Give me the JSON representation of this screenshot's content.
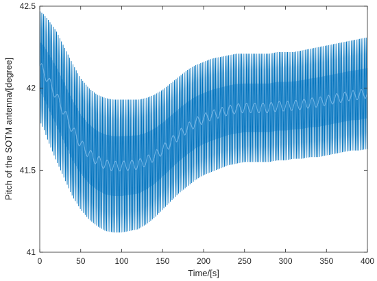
{
  "chart_data": {
    "type": "line",
    "title": "",
    "xlabel": "Time/[s]",
    "ylabel": "Pitch of the SOTM antenna/[degree]",
    "xlim": [
      0,
      400
    ],
    "ylim": [
      41,
      42.5
    ],
    "xticks": [
      0,
      50,
      100,
      150,
      200,
      250,
      300,
      350,
      400
    ],
    "yticks": [
      41,
      41.5,
      42,
      42.5
    ],
    "xtick_labels": [
      "0",
      "50",
      "100",
      "150",
      "200",
      "250",
      "300",
      "350",
      "400"
    ],
    "ytick_labels": [
      "41",
      "41.5",
      "42",
      "42.5"
    ],
    "grid": false,
    "box": true,
    "series": [
      {
        "color": "#0072BD",
        "oscillation_period_s": 2,
        "envelope": {
          "t": [
            0,
            5,
            10,
            20,
            30,
            40,
            50,
            60,
            70,
            80,
            90,
            100,
            110,
            120,
            130,
            140,
            150,
            160,
            170,
            180,
            190,
            200,
            210,
            220,
            230,
            240,
            250,
            260,
            270,
            280,
            290,
            300,
            310,
            320,
            330,
            340,
            350,
            360,
            370,
            380,
            390,
            400
          ],
          "upper": [
            42.47,
            42.45,
            42.42,
            42.35,
            42.25,
            42.15,
            42.06,
            42.0,
            41.96,
            41.94,
            41.93,
            41.93,
            41.93,
            41.93,
            41.94,
            41.96,
            41.99,
            42.03,
            42.07,
            42.11,
            42.14,
            42.16,
            42.18,
            42.19,
            42.2,
            42.21,
            42.21,
            42.21,
            42.21,
            42.21,
            42.22,
            42.22,
            42.22,
            42.23,
            42.24,
            42.25,
            42.26,
            42.27,
            42.28,
            42.29,
            42.3,
            42.31
          ],
          "lower": [
            41.8,
            41.75,
            41.68,
            41.56,
            41.45,
            41.34,
            41.26,
            41.2,
            41.16,
            41.13,
            41.12,
            41.12,
            41.13,
            41.14,
            41.17,
            41.21,
            41.26,
            41.31,
            41.36,
            41.4,
            41.44,
            41.47,
            41.49,
            41.51,
            41.53,
            41.54,
            41.55,
            41.55,
            41.55,
            41.55,
            41.56,
            41.56,
            41.57,
            41.57,
            41.58,
            41.58,
            41.59,
            41.6,
            41.61,
            41.62,
            41.62,
            41.63
          ]
        }
      }
    ]
  }
}
